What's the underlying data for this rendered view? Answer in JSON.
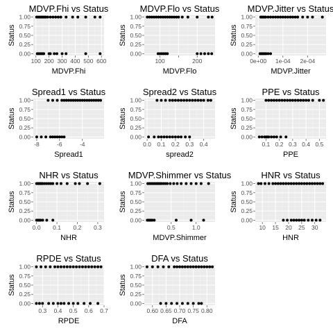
{
  "chart_data": [
    {
      "type": "scatter",
      "title": "MDVP.Fhi vs Status",
      "xlabel": "MDVP.Fhi",
      "ylabel": "Status",
      "xlim": [
        80,
        620
      ],
      "ylim": [
        -0.05,
        1.05
      ],
      "xticks": [
        100,
        200,
        300,
        400,
        500,
        600
      ],
      "xtick_labels": [
        "100",
        "200",
        "300",
        "400",
        "500",
        "600"
      ],
      "yticks": [
        0,
        0.25,
        0.5,
        0.75,
        1
      ],
      "ytick_labels": [
        "0.00",
        "0.25",
        "0.50",
        "0.75",
        "1.00"
      ],
      "x": [
        105,
        115,
        125,
        135,
        145,
        155,
        165,
        175,
        190,
        210,
        230,
        250,
        270,
        290,
        330,
        380,
        420,
        480,
        550,
        590,
        110,
        120,
        130,
        140,
        150,
        160,
        200,
        210,
        240,
        260,
        300,
        330,
        480,
        590
      ],
      "y": [
        1,
        1,
        1,
        1,
        1,
        1,
        1,
        1,
        1,
        1,
        1,
        1,
        1,
        1,
        1,
        1,
        1,
        1,
        1,
        1,
        0,
        0,
        0,
        0,
        0,
        0,
        0,
        0,
        0,
        0,
        0,
        0,
        0,
        0
      ]
    },
    {
      "type": "scatter",
      "title": "MDVP.Flo vs Status",
      "xlabel": "MDVP.Flo",
      "ylabel": "Status",
      "xlim": [
        58,
        248
      ],
      "ylim": [
        -0.05,
        1.05
      ],
      "xticks": [
        100,
        150,
        200
      ],
      "xtick_labels": [
        "100",
        "",
        "200"
      ],
      "yticks": [
        0,
        0.25,
        0.5,
        0.75,
        1
      ],
      "ytick_labels": [
        "0.00",
        "0.25",
        "0.50",
        "0.75",
        "1.00"
      ],
      "x": [
        66,
        72,
        78,
        84,
        90,
        96,
        102,
        108,
        114,
        120,
        126,
        132,
        138,
        144,
        150,
        160,
        175,
        200,
        230,
        240,
        95,
        100,
        105,
        110,
        115,
        120,
        200,
        210,
        220,
        230,
        239
      ],
      "y": [
        1,
        1,
        1,
        1,
        1,
        1,
        1,
        1,
        1,
        1,
        1,
        1,
        1,
        1,
        1,
        1,
        1,
        1,
        1,
        1,
        0,
        0,
        0,
        0,
        0,
        0,
        0,
        0,
        0,
        0,
        0
      ]
    },
    {
      "type": "scatter",
      "title": "MDVP.Jitter vs Status",
      "xlabel": "MDVP.Jitter",
      "ylabel": "Status",
      "xlim": [
        -1.2e-05,
        0.000275
      ],
      "ylim": [
        -0.05,
        1.05
      ],
      "xticks": [
        0,
        0.0001,
        0.0002
      ],
      "xtick_labels": [
        "0e+00",
        "1e-04",
        "2e-04"
      ],
      "yticks": [
        0,
        0.25,
        0.5,
        0.75,
        1
      ],
      "ytick_labels": [
        "0.00",
        "0.25",
        "0.50",
        "0.75",
        "1.00"
      ],
      "x": [
        1e-05,
        1.5e-05,
        2e-05,
        2.5e-05,
        3e-05,
        4e-05,
        5e-05,
        6e-05,
        7e-05,
        8e-05,
        9e-05,
        0.0001,
        0.00011,
        0.00012,
        0.00013,
        0.00014,
        0.00015,
        0.00016,
        0.00018,
        0.0002,
        0.00022,
        0.00026,
        7e-06,
        1.2e-05,
        1.7e-05,
        2.2e-05,
        2.7e-05,
        3.2e-05,
        4e-05,
        5e-05
      ],
      "y": [
        1,
        1,
        1,
        1,
        1,
        1,
        1,
        1,
        1,
        1,
        1,
        1,
        1,
        1,
        1,
        1,
        1,
        1,
        1,
        1,
        1,
        1,
        0,
        0,
        0,
        0,
        0,
        0,
        0,
        0
      ]
    },
    {
      "type": "scatter",
      "title": "Spread1 vs Status",
      "xlabel": "Spread1",
      "ylabel": "Status",
      "xlim": [
        -8.3,
        -2.1
      ],
      "ylim": [
        -0.05,
        1.05
      ],
      "xticks": [
        -8,
        -6,
        -4
      ],
      "xtick_labels": [
        "-8",
        "-6",
        "-4"
      ],
      "yticks": [
        0,
        0.25,
        0.5,
        0.75,
        1
      ],
      "ytick_labels": [
        "0.00",
        "0.25",
        "0.50",
        "0.75",
        "1.00"
      ],
      "x": [
        -7.0,
        -6.6,
        -6.2,
        -5.8,
        -5.6,
        -5.4,
        -5.2,
        -5.0,
        -4.8,
        -4.6,
        -4.4,
        -4.2,
        -4.0,
        -3.8,
        -3.6,
        -3.4,
        -3.2,
        -3.0,
        -2.8,
        -2.6,
        -2.4,
        -8.0,
        -7.6,
        -7.2,
        -6.8,
        -6.6,
        -6.4,
        -6.2,
        -6.0,
        -5.8,
        -5.6
      ],
      "y": [
        1,
        1,
        1,
        1,
        1,
        1,
        1,
        1,
        1,
        1,
        1,
        1,
        1,
        1,
        1,
        1,
        1,
        1,
        1,
        1,
        1,
        0,
        0,
        0,
        0,
        0,
        0,
        0,
        0,
        0,
        0
      ]
    },
    {
      "type": "scatter",
      "title": "Spread2 vs Status",
      "xlabel": "spread2",
      "ylabel": "Status",
      "xlim": [
        -0.02,
        0.48
      ],
      "ylim": [
        -0.05,
        1.05
      ],
      "xticks": [
        0,
        0.1,
        0.2,
        0.3,
        0.4
      ],
      "xtick_labels": [
        "0.0",
        "0.1",
        "0.2",
        "0.3",
        "0.4"
      ],
      "yticks": [
        0,
        0.25,
        0.5,
        0.75,
        1
      ],
      "ytick_labels": [
        "0.00",
        "0.25",
        "0.50",
        "0.75",
        "1.00"
      ],
      "x": [
        0.07,
        0.1,
        0.13,
        0.16,
        0.18,
        0.2,
        0.22,
        0.24,
        0.26,
        0.28,
        0.3,
        0.32,
        0.34,
        0.36,
        0.38,
        0.4,
        0.43,
        0.45,
        0.01,
        0.05,
        0.08,
        0.1,
        0.12,
        0.14,
        0.16,
        0.18,
        0.2,
        0.22,
        0.24,
        0.27,
        0.3
      ],
      "y": [
        1,
        1,
        1,
        1,
        1,
        1,
        1,
        1,
        1,
        1,
        1,
        1,
        1,
        1,
        1,
        1,
        1,
        1,
        0,
        0,
        0,
        0,
        0,
        0,
        0,
        0,
        0,
        0,
        0,
        0,
        0
      ]
    },
    {
      "type": "scatter",
      "title": "PPE vs Status",
      "xlabel": "PPE",
      "ylabel": "Status",
      "xlim": [
        0.02,
        0.55
      ],
      "ylim": [
        -0.05,
        1.05
      ],
      "xticks": [
        0.1,
        0.2,
        0.3,
        0.4,
        0.5
      ],
      "xtick_labels": [
        "0.1",
        "0.2",
        "0.3",
        "0.4",
        "0.5"
      ],
      "yticks": [
        0,
        0.25,
        0.5,
        0.75,
        1
      ],
      "ytick_labels": [
        "0.00",
        "0.25",
        "0.50",
        "0.75",
        "1.00"
      ],
      "x": [
        0.1,
        0.12,
        0.14,
        0.16,
        0.18,
        0.2,
        0.22,
        0.24,
        0.26,
        0.28,
        0.3,
        0.32,
        0.34,
        0.36,
        0.38,
        0.4,
        0.42,
        0.45,
        0.5,
        0.53,
        0.05,
        0.07,
        0.09,
        0.1,
        0.11,
        0.12,
        0.14,
        0.16,
        0.18,
        0.21,
        0.25
      ],
      "y": [
        1,
        1,
        1,
        1,
        1,
        1,
        1,
        1,
        1,
        1,
        1,
        1,
        1,
        1,
        1,
        1,
        1,
        1,
        1,
        1,
        0,
        0,
        0,
        0,
        0,
        0,
        0,
        0,
        0,
        0,
        0
      ]
    },
    {
      "type": "scatter",
      "title": "NHR vs Status",
      "xlabel": "NHR",
      "ylabel": "Status",
      "xlim": [
        -0.016,
        0.331
      ],
      "ylim": [
        -0.05,
        1.05
      ],
      "xticks": [
        0,
        0.1,
        0.2,
        0.3
      ],
      "xtick_labels": [
        "0.0",
        "0.1",
        "0.2",
        "0.3"
      ],
      "yticks": [
        0,
        0.25,
        0.5,
        0.75,
        1
      ],
      "ytick_labels": [
        "0.00",
        "0.25",
        "0.50",
        "0.75",
        "1.00"
      ],
      "x": [
        0.0,
        0.005,
        0.01,
        0.015,
        0.02,
        0.025,
        0.03,
        0.04,
        0.05,
        0.06,
        0.07,
        0.08,
        0.1,
        0.12,
        0.15,
        0.19,
        0.21,
        0.25,
        0.31,
        0.0,
        0.005,
        0.01,
        0.015,
        0.02,
        0.03,
        0.05,
        0.08
      ],
      "y": [
        1,
        1,
        1,
        1,
        1,
        1,
        1,
        1,
        1,
        1,
        1,
        1,
        1,
        1,
        1,
        1,
        1,
        1,
        1,
        0,
        0,
        0,
        0,
        0,
        0,
        0,
        0
      ]
    },
    {
      "type": "scatter",
      "title": "MDVP.Shimmer vs Status",
      "xlabel": "MDVP.Shimmer",
      "ylabel": "Status",
      "xlim": [
        -0.04,
        1.38
      ],
      "ylim": [
        -0.05,
        1.05
      ],
      "xticks": [
        0.5,
        1.0
      ],
      "xtick_labels": [
        "0.5",
        "1.0"
      ],
      "yticks": [
        0,
        0.25,
        0.5,
        0.75,
        1
      ],
      "ytick_labels": [
        "0.00",
        "0.25",
        "0.50",
        "0.75",
        "1.00"
      ],
      "x": [
        0.03,
        0.06,
        0.09,
        0.12,
        0.15,
        0.18,
        0.21,
        0.24,
        0.27,
        0.3,
        0.34,
        0.38,
        0.42,
        0.48,
        0.55,
        0.62,
        0.7,
        0.8,
        0.9,
        1.0,
        1.1,
        1.25,
        0.02,
        0.04,
        0.06,
        0.08,
        0.1,
        0.12,
        0.16,
        0.6,
        0.9,
        1.15
      ],
      "y": [
        1,
        1,
        1,
        1,
        1,
        1,
        1,
        1,
        1,
        1,
        1,
        1,
        1,
        1,
        1,
        1,
        1,
        1,
        1,
        1,
        1,
        1,
        0,
        0,
        0,
        0,
        0,
        0,
        0,
        0,
        0,
        0
      ]
    },
    {
      "type": "scatter",
      "title": "HNR vs Status",
      "xlabel": "HNR",
      "ylabel": "Status",
      "xlim": [
        7.3,
        34.3
      ],
      "ylim": [
        -0.05,
        1.05
      ],
      "xticks": [
        10,
        15,
        20,
        25,
        30
      ],
      "xtick_labels": [
        "10",
        "15",
        "20",
        "25",
        "30"
      ],
      "yticks": [
        0,
        0.25,
        0.5,
        0.75,
        1
      ],
      "ytick_labels": [
        "0.00",
        "0.25",
        "0.50",
        "0.75",
        "1.00"
      ],
      "x": [
        8.5,
        9.5,
        11,
        12.5,
        14,
        15,
        16,
        17,
        18,
        19,
        20,
        21,
        22,
        23,
        24,
        25,
        26,
        27,
        28,
        29,
        30,
        31,
        32,
        33,
        18,
        19.5,
        21,
        22,
        23,
        24,
        25,
        26,
        27.5,
        29,
        30.5,
        32
      ],
      "y": [
        1,
        1,
        1,
        1,
        1,
        1,
        1,
        1,
        1,
        1,
        1,
        1,
        1,
        1,
        1,
        1,
        1,
        1,
        1,
        1,
        1,
        1,
        1,
        1,
        0,
        0,
        0,
        0,
        0,
        0,
        0,
        0,
        0,
        0,
        0,
        0
      ]
    },
    {
      "type": "scatter",
      "title": "RPDE vs Status",
      "xlabel": "RPDE",
      "ylabel": "Status",
      "xlim": [
        0.24,
        0.7
      ],
      "ylim": [
        -0.05,
        1.05
      ],
      "xticks": [
        0.3,
        0.4,
        0.5,
        0.6,
        0.7
      ],
      "xtick_labels": [
        "0.3",
        "0.4",
        "0.5",
        "0.6",
        "0.7"
      ],
      "yticks": [
        0,
        0.25,
        0.5,
        0.75,
        1
      ],
      "ytick_labels": [
        "0.00",
        "0.25",
        "0.50",
        "0.75",
        "1.00"
      ],
      "x": [
        0.26,
        0.29,
        0.32,
        0.35,
        0.38,
        0.4,
        0.42,
        0.44,
        0.46,
        0.48,
        0.5,
        0.52,
        0.54,
        0.56,
        0.58,
        0.6,
        0.62,
        0.64,
        0.66,
        0.68,
        0.26,
        0.28,
        0.3,
        0.34,
        0.37,
        0.4,
        0.42,
        0.44,
        0.47,
        0.5,
        0.53,
        0.57,
        0.61,
        0.66
      ],
      "y": [
        1,
        1,
        1,
        1,
        1,
        1,
        1,
        1,
        1,
        1,
        1,
        1,
        1,
        1,
        1,
        1,
        1,
        1,
        1,
        1,
        0,
        0,
        0,
        0,
        0,
        0,
        0,
        0,
        0,
        0,
        0,
        0,
        0,
        0
      ]
    },
    {
      "type": "scatter",
      "title": "DFA vs Status",
      "xlabel": "DFA",
      "ylabel": "Status",
      "xlim": [
        0.57,
        0.83
      ],
      "ylim": [
        -0.05,
        1.05
      ],
      "xticks": [
        0.6,
        0.65,
        0.7,
        0.75,
        0.8
      ],
      "xtick_labels": [
        "0.60",
        "0.65",
        "0.70",
        "0.75",
        "0.80"
      ],
      "yticks": [
        0,
        0.25,
        0.5,
        0.75,
        1
      ],
      "ytick_labels": [
        "0.00",
        "0.25",
        "0.50",
        "0.75",
        "1.00"
      ],
      "x": [
        0.58,
        0.6,
        0.62,
        0.64,
        0.66,
        0.68,
        0.69,
        0.7,
        0.71,
        0.72,
        0.73,
        0.74,
        0.75,
        0.76,
        0.77,
        0.78,
        0.79,
        0.8,
        0.81,
        0.82,
        0.63,
        0.65,
        0.67,
        0.69,
        0.71,
        0.73,
        0.75,
        0.77,
        0.78
      ],
      "y": [
        1,
        1,
        1,
        1,
        1,
        1,
        1,
        1,
        1,
        1,
        1,
        1,
        1,
        1,
        1,
        1,
        1,
        1,
        1,
        1,
        0,
        0,
        0,
        0,
        0,
        0,
        0,
        0,
        0
      ]
    }
  ],
  "style": {
    "panel_background": "#ebebeb",
    "grid_major": "#ffffff",
    "grid_minor": "#f5f5f5",
    "point_color": "#000000",
    "tick_color": "#4d4d4d"
  }
}
